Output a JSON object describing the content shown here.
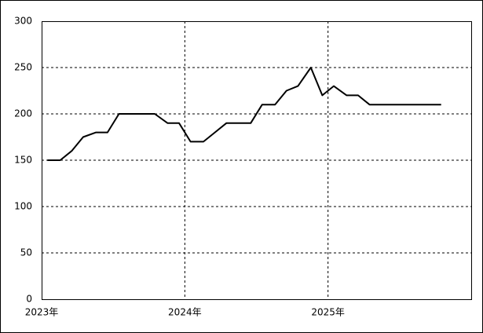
{
  "chart_data": {
    "type": "line",
    "x": [
      2023.04,
      2023.13,
      2023.21,
      2023.29,
      2023.38,
      2023.46,
      2023.54,
      2023.63,
      2023.71,
      2023.79,
      2023.88,
      2023.96,
      2024.04,
      2024.13,
      2024.21,
      2024.29,
      2024.38,
      2024.46,
      2024.54,
      2024.63,
      2024.71,
      2024.79,
      2024.88,
      2024.96,
      2025.04,
      2025.13,
      2025.21,
      2025.29,
      2025.38,
      2025.46,
      2025.54,
      2025.63,
      2025.71,
      2025.79
    ],
    "values": [
      150,
      150,
      160,
      175,
      180,
      180,
      200,
      200,
      200,
      200,
      190,
      190,
      170,
      170,
      180,
      190,
      190,
      190,
      210,
      210,
      225,
      230,
      250,
      220,
      230,
      220,
      220,
      210,
      210,
      210,
      210,
      210,
      210,
      210
    ],
    "color": "#000000",
    "xlim": [
      2023,
      2026
    ],
    "xticks": [
      {
        "value": 2023,
        "label": "2023年"
      },
      {
        "value": 2024,
        "label": "2024年"
      },
      {
        "value": 2025,
        "label": "2025年"
      }
    ],
    "ylim": [
      0,
      300
    ],
    "yticks": [
      0,
      50,
      100,
      150,
      200,
      250,
      300
    ],
    "grid": true
  }
}
